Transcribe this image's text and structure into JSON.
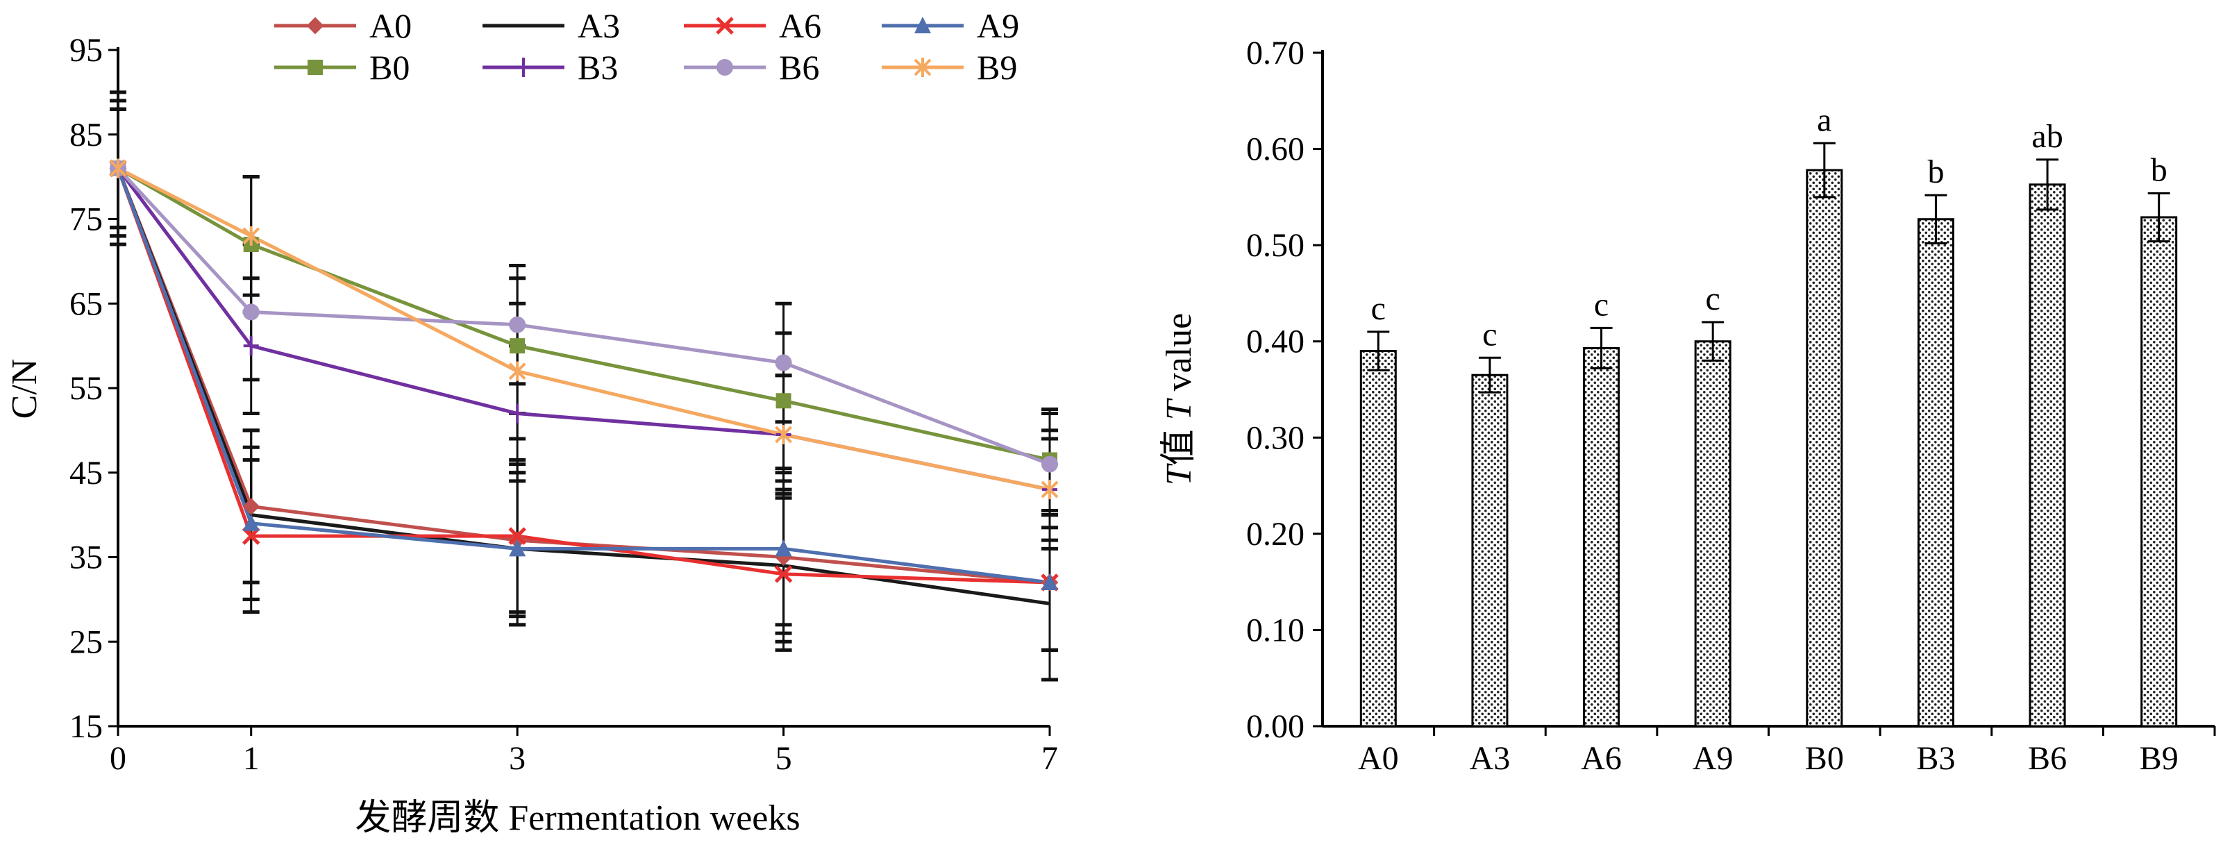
{
  "chart_data": [
    {
      "type": "line",
      "xlabel": "发酵周数  Fermentation weeks",
      "ylabel": "C/N",
      "x": [
        0,
        1,
        3,
        5,
        7
      ],
      "x_ticks": [
        "0",
        "1",
        "3",
        "5",
        "7"
      ],
      "ylim": [
        15,
        95
      ],
      "y_ticks": [
        "15",
        "25",
        "35",
        "45",
        "55",
        "65",
        "75",
        "85",
        "95"
      ],
      "grid": false,
      "legend_position": "top",
      "series": [
        {
          "name": "A0",
          "color": "#c0504d",
          "marker": "diamond",
          "values": [
            81,
            41,
            37,
            35,
            32
          ],
          "error": [
            8,
            9,
            9,
            9,
            8
          ]
        },
        {
          "name": "A3",
          "color": "#1a1a1a",
          "marker": "none",
          "values": [
            81,
            40,
            36,
            34,
            29.5
          ],
          "error": [
            9,
            10,
            9,
            9,
            9
          ]
        },
        {
          "name": "A6",
          "color": "#e83030",
          "marker": "x",
          "values": [
            81,
            37.5,
            37.5,
            33,
            32
          ],
          "error": [
            8,
            9,
            9,
            9,
            8
          ]
        },
        {
          "name": "A9",
          "color": "#4f6fae",
          "marker": "triangle",
          "values": [
            81,
            39,
            36,
            36,
            32
          ],
          "error": [
            8,
            9,
            9,
            9,
            8
          ]
        },
        {
          "name": "B0",
          "color": "#77933c",
          "marker": "square",
          "values": [
            81,
            72,
            60,
            53.5,
            46.5
          ],
          "error": [
            7,
            8,
            8,
            8,
            6
          ]
        },
        {
          "name": "B3",
          "color": "#7030a0",
          "marker": "plus",
          "values": [
            81,
            60,
            52,
            49.5,
            43
          ],
          "error": [
            7,
            8,
            8,
            7,
            7
          ]
        },
        {
          "name": "B6",
          "color": "#a694c4",
          "marker": "circle",
          "values": [
            81,
            64,
            62.5,
            58,
            46
          ],
          "error": [
            7,
            8,
            7,
            7,
            6
          ]
        },
        {
          "name": "B9",
          "color": "#f5a860",
          "marker": "asterisk",
          "values": [
            81,
            73,
            57,
            49.5,
            43
          ],
          "error": [
            7,
            7,
            8,
            7,
            6
          ]
        }
      ]
    },
    {
      "type": "bar",
      "categories": [
        "A0",
        "A3",
        "A6",
        "A9",
        "B0",
        "B3",
        "B6",
        "B9"
      ],
      "values": [
        0.39,
        0.365,
        0.393,
        0.4,
        0.578,
        0.527,
        0.563,
        0.529
      ],
      "error": [
        0.02,
        0.018,
        0.021,
        0.02,
        0.028,
        0.025,
        0.026,
        0.025
      ],
      "annotations": [
        "c",
        "c",
        "c",
        "c",
        "a",
        "b",
        "ab",
        "b"
      ],
      "ylabel_italic": "T",
      "ylabel_rest": "值  ",
      "ylabel_italic2": "T",
      "ylabel_rest2": " value",
      "ylim": [
        0,
        0.7
      ],
      "y_ticks": [
        "0.00",
        "0.10",
        "0.20",
        "0.30",
        "0.40",
        "0.50",
        "0.60",
        "0.70"
      ],
      "grid": false,
      "bar_fill": "dotted",
      "bar_color": "#000000"
    }
  ]
}
